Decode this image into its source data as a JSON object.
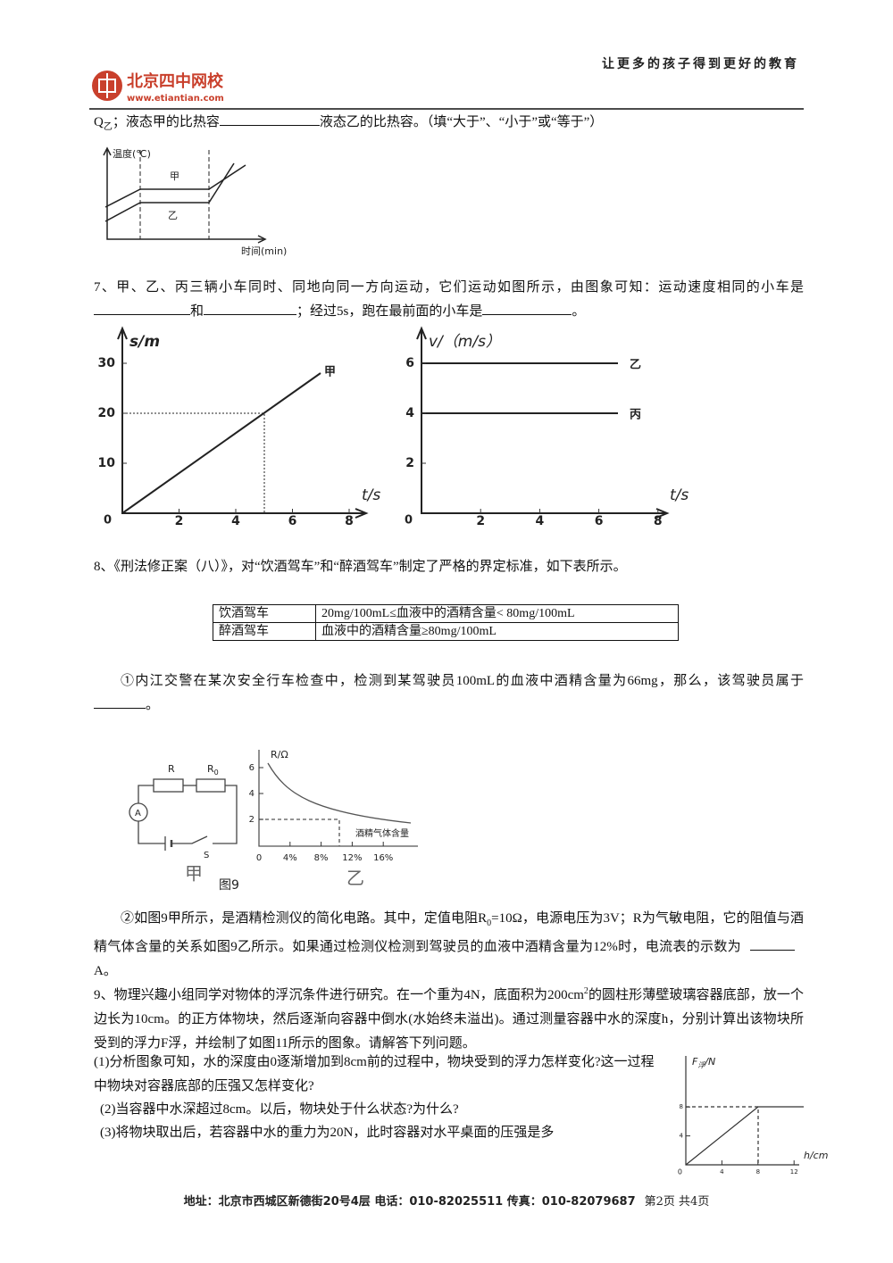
{
  "header": {
    "slogan": "让更多的孩子得到更好的教育",
    "logo_name": "北京四中网校",
    "logo_url": "www.etiantian.com"
  },
  "q6": {
    "parts": [
      "Q",
      "乙",
      "；液态甲的比热容",
      "液态乙的比热容。（填“大于”、“小于”或“等于”）"
    ],
    "figure": {
      "y_label": "温度(℃)",
      "x_label": "时间(min)",
      "labels": [
        "甲",
        "乙"
      ]
    }
  },
  "q7": {
    "parts": [
      "7、甲、乙、丙三辆小车同时、同地向同一方向运动，它们运动如图所示，由图象可知：运动速度相同的小车是",
      "和",
      "；经过5s，跑在最前面的小车是",
      "。"
    ],
    "graph_s": {
      "y_label": "s/m",
      "x_label": "t/s",
      "origin": 0,
      "yticks": [
        10,
        20,
        30
      ],
      "xticks": [
        2,
        4,
        6,
        8
      ],
      "line_label": "甲"
    },
    "graph_v": {
      "y_label": "v/（m/s）",
      "x_label": "t/s",
      "origin": 0,
      "yticks": [
        2,
        4,
        6
      ],
      "xticks": [
        2,
        4,
        6,
        8
      ],
      "line_labels": [
        "乙",
        "丙"
      ]
    }
  },
  "q8": {
    "intro": "8、《刑法修正案（八）》，对“饮酒驾车”和“醉酒驾车”制定了严格的界定标准，如下表所示。",
    "table": {
      "rows": [
        [
          "饮酒驾车",
          "20mg/100mL≤血液中的酒精含量< 80mg/100mL"
        ],
        [
          "醉酒驾车",
          "血液中的酒精含量≥80mg/100mL"
        ]
      ]
    },
    "sub1": [
      "①内江交警在某次安全行车检查中，检测到某驾驶员100mL的血液中酒精含量为66mg，那么，该驾驶员属于",
      "。"
    ],
    "figure": {
      "circuit": {
        "r": "R",
        "r0": "R",
        "r0_sub": "0",
        "ammeter": "A",
        "switch": "S",
        "name": "甲"
      },
      "graph": {
        "y_label": "R/Ω",
        "origin": 0,
        "yticks": [
          2,
          4,
          6
        ],
        "xticks": [
          {
            "value": 4,
            "label": "4%"
          },
          {
            "value": 8,
            "label": "8%"
          },
          {
            "value": 12,
            "label": "12%"
          },
          {
            "value": 16,
            "label": "16%"
          }
        ],
        "annotation": "酒精气体含量",
        "name": "乙"
      },
      "caption": "图9"
    },
    "sub2": [
      "②如图9甲所示，是酒精检测仪的简化电路。其中，定值电阻R",
      "0",
      "=10Ω，电源电压为3V；R为气敏电阻，它的阻值与酒精气体含量的关系如图9乙所示。如果通过检测仪检测到驾驶员的血液中酒精含量为12%时，电流表的示数为",
      "A。"
    ]
  },
  "q9": {
    "intro": [
      "9、物理兴趣小组同学对物体的浮沉条件进行研究。在一个重为4N，底面积为200cm",
      "2",
      "的圆柱形薄壁玻璃容器底部，放一个边长为10cm。的正方体物块，然后逐渐向容器中倒水(水始终未溢出)。通过测量容器中水的深度h，分别计算出该物块所受到的浮力F浮，并绘制了如图11所示的图象。请解答下列问题。"
    ],
    "questions": [
      "(1)分析图象可知，水的深度由0逐渐增加到8cm前的过程中，物块受到的浮力怎样变化?这一过程中物块对容器底部的压强又怎样变化?",
      "(2)当容器中水深超过8cm。以后，物块处于什么状态?为什么?",
      "(3)将物块取出后，若容器中水的重力为20N，此时容器对水平桌面的压强是多"
    ],
    "graph": {
      "y_label": "F",
      "y_label_sub": "浮",
      "y_label_unit": "/N",
      "x_label": "h/cm",
      "origin": 0,
      "yticks": [
        4,
        8
      ],
      "xticks": [
        4,
        8,
        12
      ]
    }
  },
  "footer": {
    "address": "地址：北京市西城区新德街20号4层 电话：010-82025511 传真：010-82079687",
    "page": "第2页 共4页"
  }
}
